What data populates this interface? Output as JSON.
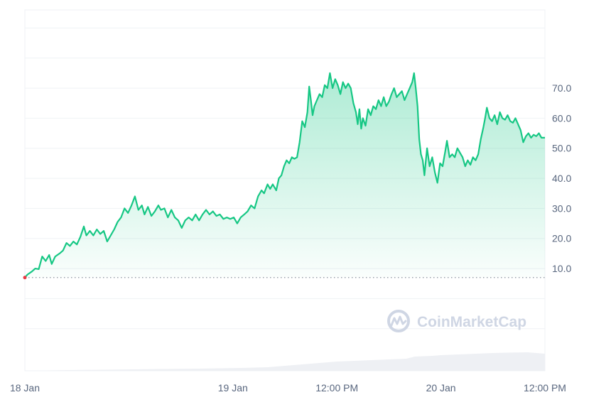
{
  "watermark": {
    "text": "CoinMarketCap",
    "icon": "coinmarketcap-logo-icon"
  },
  "colors": {
    "line": "#16c784",
    "fill_top": "#16c784",
    "grid": "#eff2f5",
    "baseline_dots": "#8a939f",
    "start_marker": "#ea3943",
    "volume": "#eef0f4",
    "axis_text": "#58667e",
    "watermark": "#cfd6e4"
  },
  "chart_data": {
    "type": "area",
    "title": "",
    "xlabel": "",
    "ylabel": "",
    "y_axis_position": "right",
    "grid": true,
    "ylim": [
      -24,
      96
    ],
    "y_ticks": [
      10,
      20,
      30,
      40,
      50,
      60,
      70
    ],
    "y_tick_labels": [
      "10.0",
      "20.0",
      "30.0",
      "40.0",
      "50.0",
      "60.0",
      "70.0"
    ],
    "x_ticks": [
      {
        "t": 0,
        "label": "18 Jan"
      },
      {
        "t": 24,
        "label": "19 Jan"
      },
      {
        "t": 36,
        "label": "12:00 PM"
      },
      {
        "t": 48,
        "label": "20 Jan"
      },
      {
        "t": 60,
        "label": "12:00 PM"
      }
    ],
    "x_unit": "hours since 18 Jan 00:00",
    "xlim": [
      0,
      60
    ],
    "baseline_value": 7,
    "price_series": [
      [
        0,
        7
      ],
      [
        0.3,
        8
      ],
      [
        0.8,
        9
      ],
      [
        1.2,
        10
      ],
      [
        1.6,
        9.8
      ],
      [
        2.0,
        14
      ],
      [
        2.4,
        12.5
      ],
      [
        2.8,
        14.5
      ],
      [
        3.1,
        11.5
      ],
      [
        3.5,
        14
      ],
      [
        4.0,
        15
      ],
      [
        4.4,
        16
      ],
      [
        4.8,
        18.5
      ],
      [
        5.2,
        17.5
      ],
      [
        5.6,
        19
      ],
      [
        6.0,
        18
      ],
      [
        6.4,
        20.5
      ],
      [
        6.8,
        24
      ],
      [
        7.1,
        21
      ],
      [
        7.5,
        22.5
      ],
      [
        7.9,
        21
      ],
      [
        8.3,
        23
      ],
      [
        8.7,
        21.5
      ],
      [
        9.1,
        22.5
      ],
      [
        9.5,
        19
      ],
      [
        9.9,
        21
      ],
      [
        10.3,
        23
      ],
      [
        10.7,
        25.5
      ],
      [
        11.1,
        27
      ],
      [
        11.5,
        30
      ],
      [
        11.9,
        28.5
      ],
      [
        12.3,
        31
      ],
      [
        12.7,
        34
      ],
      [
        13.1,
        29.5
      ],
      [
        13.5,
        31
      ],
      [
        13.8,
        28
      ],
      [
        14.2,
        30.5
      ],
      [
        14.6,
        27.5
      ],
      [
        15.0,
        29
      ],
      [
        15.4,
        31
      ],
      [
        15.7,
        29.5
      ],
      [
        16.1,
        30
      ],
      [
        16.5,
        27
      ],
      [
        16.9,
        29.5
      ],
      [
        17.3,
        27
      ],
      [
        17.7,
        26
      ],
      [
        18.1,
        23.5
      ],
      [
        18.5,
        26
      ],
      [
        18.9,
        27
      ],
      [
        19.3,
        26
      ],
      [
        19.7,
        28
      ],
      [
        20.1,
        26
      ],
      [
        20.5,
        28
      ],
      [
        20.9,
        29.5
      ],
      [
        21.3,
        28
      ],
      [
        21.7,
        29
      ],
      [
        22.1,
        27.5
      ],
      [
        22.5,
        28
      ],
      [
        22.9,
        26.5
      ],
      [
        23.3,
        27
      ],
      [
        23.7,
        26.5
      ],
      [
        24.1,
        27
      ],
      [
        24.5,
        25
      ],
      [
        24.9,
        27
      ],
      [
        25.3,
        28
      ],
      [
        25.7,
        29
      ],
      [
        26.1,
        31
      ],
      [
        26.5,
        30
      ],
      [
        26.9,
        34
      ],
      [
        27.3,
        36
      ],
      [
        27.6,
        35
      ],
      [
        28.0,
        38
      ],
      [
        28.3,
        36.5
      ],
      [
        28.6,
        38
      ],
      [
        29.0,
        36
      ],
      [
        29.3,
        40
      ],
      [
        29.6,
        41
      ],
      [
        29.9,
        44
      ],
      [
        30.2,
        46
      ],
      [
        30.5,
        45
      ],
      [
        30.8,
        47
      ],
      [
        31.1,
        46.5
      ],
      [
        31.4,
        47
      ],
      [
        31.7,
        52
      ],
      [
        32.0,
        59
      ],
      [
        32.3,
        57
      ],
      [
        32.6,
        62
      ],
      [
        32.8,
        70.5
      ],
      [
        33.0,
        66
      ],
      [
        33.2,
        61
      ],
      [
        33.4,
        64
      ],
      [
        33.7,
        66
      ],
      [
        34.0,
        68
      ],
      [
        34.3,
        67
      ],
      [
        34.6,
        71
      ],
      [
        34.9,
        70
      ],
      [
        35.2,
        75
      ],
      [
        35.5,
        70
      ],
      [
        35.8,
        73
      ],
      [
        36.1,
        71
      ],
      [
        36.4,
        68
      ],
      [
        36.7,
        72
      ],
      [
        37.0,
        70
      ],
      [
        37.3,
        71.5
      ],
      [
        37.6,
        70
      ],
      [
        37.9,
        65
      ],
      [
        38.2,
        62
      ],
      [
        38.4,
        58
      ],
      [
        38.6,
        63
      ],
      [
        38.8,
        56.5
      ],
      [
        39.0,
        60
      ],
      [
        39.3,
        57.5
      ],
      [
        39.6,
        63
      ],
      [
        39.9,
        61
      ],
      [
        40.2,
        64
      ],
      [
        40.5,
        63
      ],
      [
        40.8,
        66
      ],
      [
        41.1,
        64
      ],
      [
        41.4,
        67
      ],
      [
        41.7,
        64
      ],
      [
        42.0,
        65.5
      ],
      [
        42.3,
        68
      ],
      [
        42.6,
        70
      ],
      [
        42.9,
        67
      ],
      [
        43.2,
        68
      ],
      [
        43.5,
        69
      ],
      [
        43.8,
        66
      ],
      [
        44.1,
        68
      ],
      [
        44.4,
        70
      ],
      [
        44.7,
        72
      ],
      [
        44.9,
        75
      ],
      [
        45.1,
        70
      ],
      [
        45.3,
        64
      ],
      [
        45.5,
        53
      ],
      [
        45.7,
        48
      ],
      [
        45.9,
        46
      ],
      [
        46.1,
        41
      ],
      [
        46.4,
        50
      ],
      [
        46.7,
        44
      ],
      [
        47.0,
        47
      ],
      [
        47.3,
        42
      ],
      [
        47.6,
        38.5
      ],
      [
        47.9,
        45
      ],
      [
        48.2,
        44
      ],
      [
        48.5,
        49
      ],
      [
        48.7,
        52.5
      ],
      [
        49.0,
        47
      ],
      [
        49.3,
        48
      ],
      [
        49.6,
        47
      ],
      [
        49.9,
        50
      ],
      [
        50.2,
        48.5
      ],
      [
        50.5,
        47
      ],
      [
        50.8,
        44
      ],
      [
        51.1,
        46
      ],
      [
        51.4,
        44.5
      ],
      [
        51.7,
        47
      ],
      [
        52.0,
        46
      ],
      [
        52.3,
        48
      ],
      [
        52.6,
        53
      ],
      [
        52.9,
        57
      ],
      [
        53.1,
        60
      ],
      [
        53.3,
        63.5
      ],
      [
        53.6,
        60
      ],
      [
        53.9,
        59
      ],
      [
        54.2,
        61
      ],
      [
        54.5,
        58
      ],
      [
        54.8,
        62
      ],
      [
        55.1,
        60
      ],
      [
        55.4,
        59.5
      ],
      [
        55.7,
        61
      ],
      [
        56.0,
        59
      ],
      [
        56.3,
        58.5
      ],
      [
        56.6,
        60
      ],
      [
        56.9,
        58
      ],
      [
        57.2,
        56
      ],
      [
        57.5,
        52
      ],
      [
        57.8,
        54
      ],
      [
        58.1,
        55
      ],
      [
        58.4,
        53.5
      ],
      [
        58.7,
        54.5
      ],
      [
        59.0,
        54
      ],
      [
        59.3,
        55
      ],
      [
        59.6,
        53.5
      ],
      [
        60.0,
        53.5
      ]
    ],
    "volume_series": [
      [
        0,
        0
      ],
      [
        5,
        0.5
      ],
      [
        10,
        0.8
      ],
      [
        15,
        1.2
      ],
      [
        20,
        1.5
      ],
      [
        25,
        2
      ],
      [
        28,
        2.5
      ],
      [
        30,
        3.5
      ],
      [
        32,
        4.5
      ],
      [
        34,
        5.5
      ],
      [
        36,
        6.5
      ],
      [
        38,
        7
      ],
      [
        40,
        7.5
      ],
      [
        42,
        8
      ],
      [
        44,
        8.5
      ],
      [
        45,
        10
      ],
      [
        47,
        10.5
      ],
      [
        48,
        11
      ],
      [
        50,
        11.5
      ],
      [
        52,
        12
      ],
      [
        54,
        12.5
      ],
      [
        56,
        12.8
      ],
      [
        58,
        13
      ],
      [
        60,
        12
      ]
    ],
    "volume_max": 40
  }
}
